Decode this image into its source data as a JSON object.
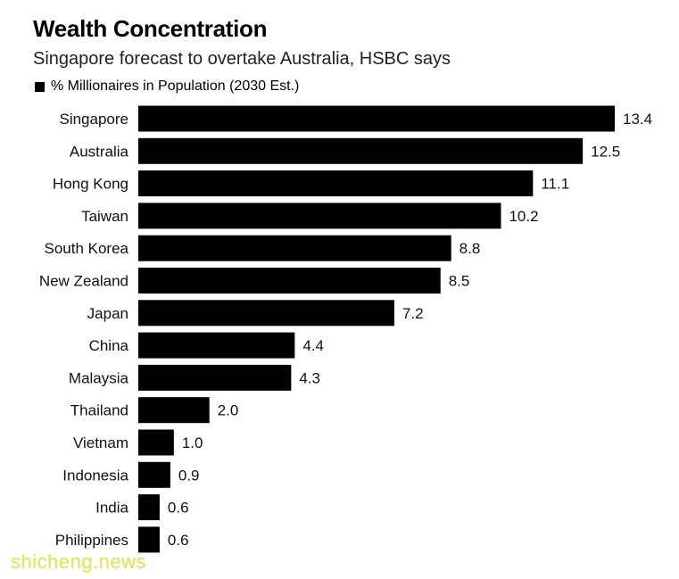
{
  "header": {
    "title": "Wealth Concentration",
    "subtitle": "Singapore forecast to overtake Australia, HSBC says"
  },
  "legend": {
    "label": "% Millionaires in Population (2030 Est.)"
  },
  "watermark": {
    "text": "shicheng.news"
  },
  "colors": {
    "bar": "#000000",
    "watermark": "#e4e86a"
  },
  "chart_data": {
    "type": "bar",
    "orientation": "horizontal",
    "title": "Wealth Concentration",
    "subtitle": "Singapore forecast to overtake Australia, HSBC says",
    "categories": [
      "Singapore",
      "Australia",
      "Hong Kong",
      "Taiwan",
      "South Korea",
      "New Zealand",
      "Japan",
      "China",
      "Malaysia",
      "Thailand",
      "Vietnam",
      "Indonesia",
      "India",
      "Philippines"
    ],
    "series": [
      {
        "name": "% Millionaires in Population (2030 Est.)",
        "values": [
          13.4,
          12.5,
          11.1,
          10.2,
          8.8,
          8.5,
          7.2,
          4.4,
          4.3,
          2.0,
          1.0,
          0.9,
          0.6,
          0.6
        ],
        "value_labels": [
          "13.4",
          "12.5",
          "11.1",
          "10.2",
          "8.8",
          "8.5",
          "7.2",
          "4.4",
          "4.3",
          "2.0",
          "1.0",
          "0.9",
          "0.6",
          "0.6"
        ]
      }
    ],
    "xlim": [
      0,
      13.4
    ],
    "grid": false,
    "legend_position": "top-left"
  }
}
